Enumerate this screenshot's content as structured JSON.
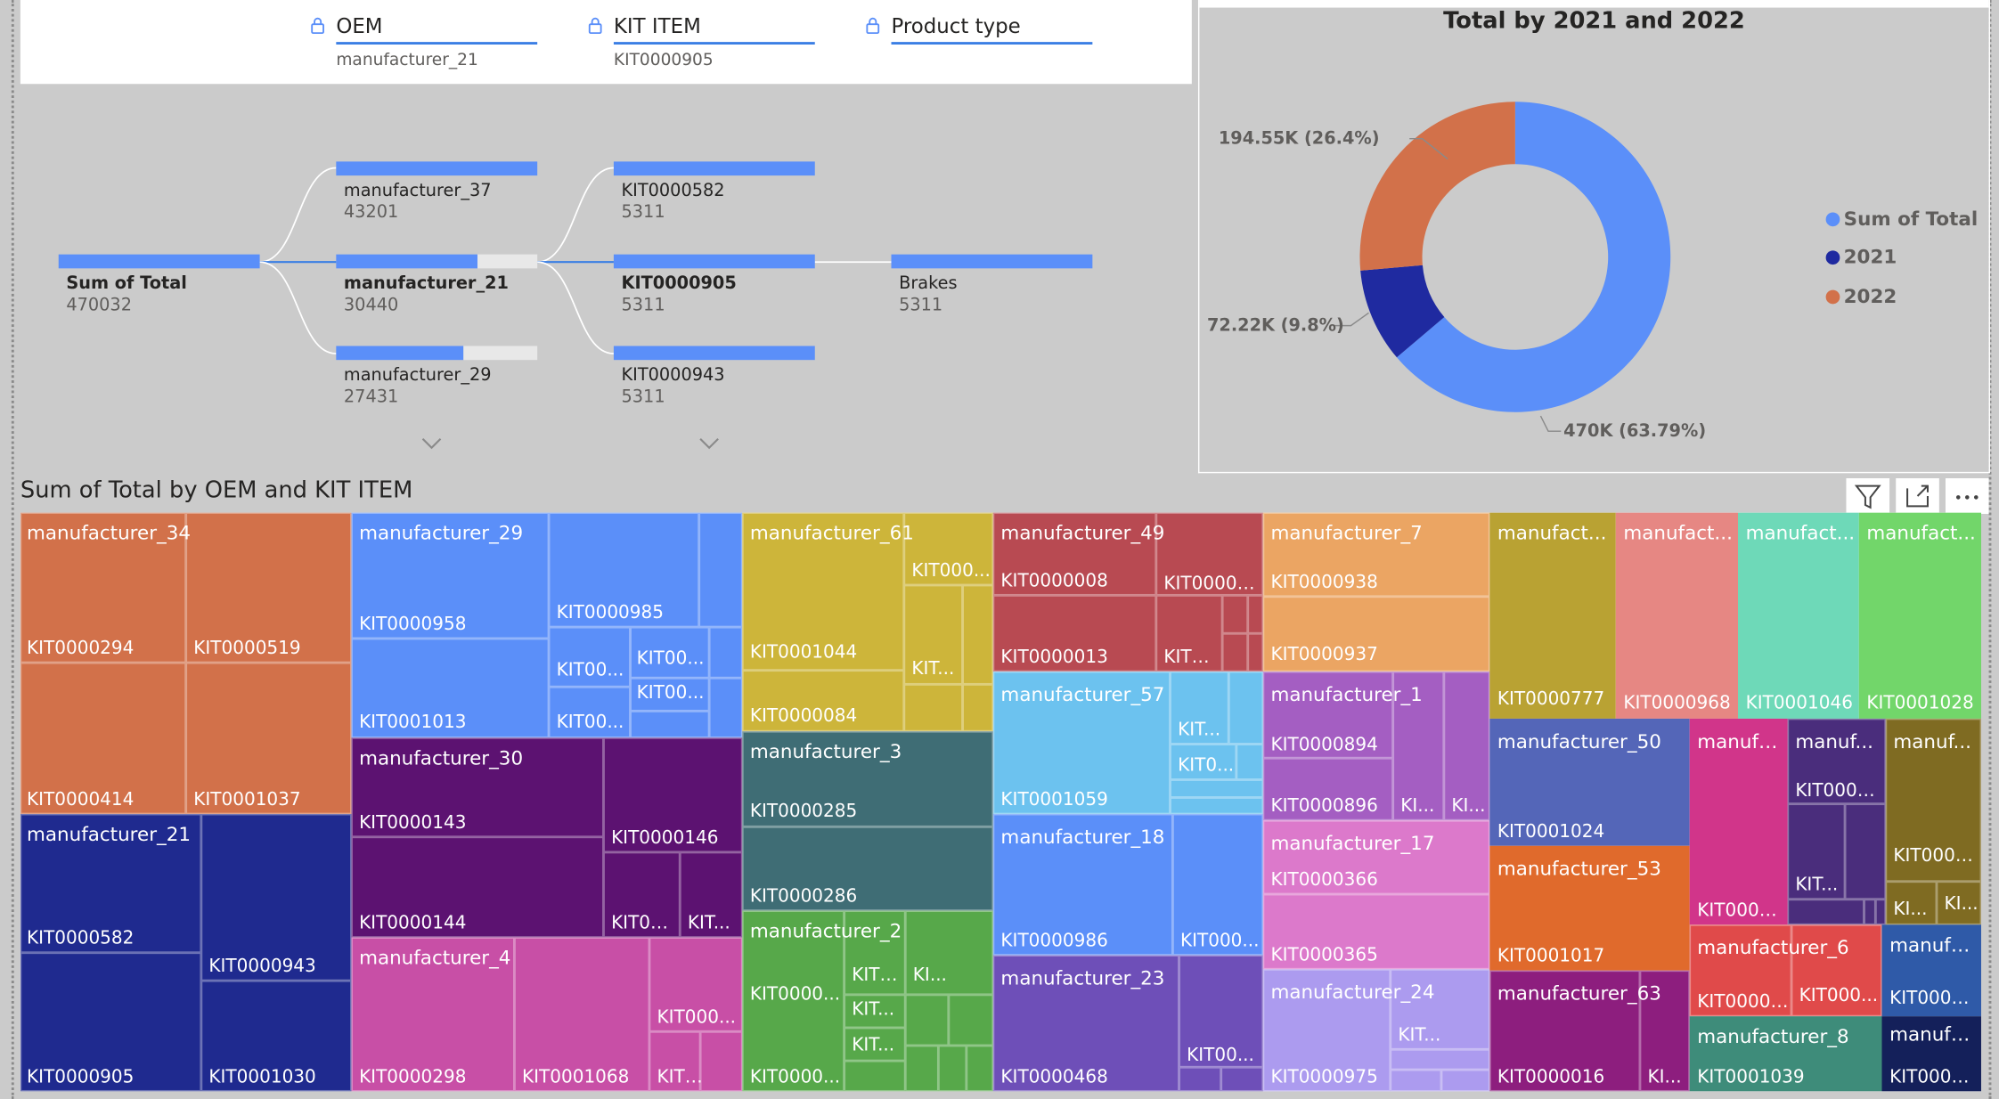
{
  "slicers": [
    {
      "title": "OEM",
      "value": "manufacturer_21"
    },
    {
      "title": "KIT ITEM",
      "value": "KIT0000905"
    },
    {
      "title": "Product type",
      "value": ""
    }
  ],
  "decomposition_tree": {
    "root": {
      "label": "Sum of Total",
      "value": "470032"
    },
    "level1": [
      {
        "label": "manufacturer_37",
        "value": "43201"
      },
      {
        "label": "manufacturer_21",
        "value": "30440"
      },
      {
        "label": "manufacturer_29",
        "value": "27431"
      }
    ],
    "level2": [
      {
        "label": "KIT0000582",
        "value": "5311"
      },
      {
        "label": "KIT0000905",
        "value": "5311"
      },
      {
        "label": "KIT0000943",
        "value": "5311"
      }
    ],
    "level3": {
      "label": "Brakes",
      "value": "5311"
    }
  },
  "donut": {
    "title": "Total by 2021 and 2022",
    "legend": [
      "Sum of Total",
      "2021",
      "2022"
    ],
    "colors": {
      "sum": "#5b8ff9",
      "y2021": "#1f2aa0",
      "y2022": "#d2714a"
    },
    "labels": {
      "sum": "470K (63.79%)",
      "y2021": "72.22K (9.8%)",
      "y2022": "194.55K (26.4%)"
    },
    "chart_data": {
      "type": "pie",
      "categories": [
        "Sum of Total",
        "2021",
        "2022"
      ],
      "values": [
        470000,
        72220,
        194550
      ],
      "percents": [
        63.79,
        9.8,
        26.4
      ]
    }
  },
  "treemap": {
    "title": "Sum of Total by OEM and KIT ITEM",
    "groups": {
      "m34": {
        "name": "manufacturer_34",
        "color": "#d2714a",
        "kits": [
          "KIT0000294",
          "KIT0000519",
          "KIT0000414",
          "KIT0001037"
        ]
      },
      "m21": {
        "name": "manufacturer_21",
        "color": "#1f2a8f",
        "kits": [
          "KIT0000582",
          "KIT0000943",
          "KIT0000905",
          "KIT0001030"
        ]
      },
      "m29": {
        "name": "manufacturer_29",
        "color": "#5b8ff9",
        "kits": [
          "KIT0000958",
          "KIT0000985",
          "KIT0001013",
          "KIT00...",
          "KIT00...",
          "KIT00...",
          "KIT00..."
        ]
      },
      "m30": {
        "name": "manufacturer_30",
        "color": "#5c1271",
        "kits": [
          "KIT0000143",
          "KIT0000146",
          "KIT0000144",
          "KIT00...",
          "KIT..."
        ]
      },
      "m4": {
        "name": "manufacturer_4",
        "color": "#c84fa6",
        "kits": [
          "KIT0000298",
          "KIT0001068",
          "KIT000...",
          "KIT0..."
        ]
      },
      "m61": {
        "name": "manufacturer_61",
        "color": "#cdb53a",
        "kits": [
          "KIT000...",
          "KIT0001044",
          "KIT...",
          "KIT0000084"
        ]
      },
      "m3": {
        "name": "manufacturer_3",
        "color": "#3f6d75",
        "kits": [
          "KIT0000285",
          "KIT0000286"
        ]
      },
      "m2": {
        "name": "manufacturer_2",
        "color": "#57a84a",
        "kits": [
          "KIT0000...",
          "KIT0...",
          "KI...",
          "KIT...",
          "KIT...",
          "KIT0000..."
        ]
      },
      "m49": {
        "name": "manufacturer_49",
        "color": "#b84a52",
        "kits": [
          "KIT0000008",
          "KIT00009...",
          "KIT0000013",
          "KIT0..."
        ]
      },
      "m57": {
        "name": "manufacturer_57",
        "color": "#6cc2ef",
        "kits": [
          "KIT...",
          "KIT0...",
          "KIT0001059"
        ]
      },
      "m18": {
        "name": "manufacturer_18",
        "color": "#5b8ff9",
        "kits": [
          "KIT0000986",
          "KIT000..."
        ]
      },
      "m23": {
        "name": "manufacturer_23",
        "color": "#6e4fb8",
        "kits": [
          "KIT0000468",
          "KIT00..."
        ]
      },
      "m7": {
        "name": "manufacturer_7",
        "color": "#eba563",
        "kits": [
          "KIT0000938",
          "KIT0000937"
        ]
      },
      "m1": {
        "name": "manufacturer_1",
        "color": "#a45ec2",
        "kits": [
          "KIT0000894",
          "KIT0000896",
          "KI...",
          "KI..."
        ]
      },
      "m17": {
        "name": "manufacturer_17",
        "color": "#dc79cb",
        "kits": [
          "KIT0000366",
          "KIT0000365"
        ]
      },
      "m24": {
        "name": "manufacturer_24",
        "color": "#ac9bef",
        "kits": [
          "KIT...",
          "KIT0000975"
        ]
      },
      "ma": {
        "name": "manufact...",
        "color": "#b9a233",
        "kits": [
          "KIT0000777"
        ]
      },
      "mb": {
        "name": "manufact...",
        "color": "#e68783",
        "kits": [
          "KIT0000968"
        ]
      },
      "mc": {
        "name": "manufact...",
        "color": "#6ed9b8",
        "kits": [
          "KIT0001046"
        ]
      },
      "md": {
        "name": "manufact...",
        "color": "#72d66a",
        "kits": [
          "KIT0001028"
        ]
      },
      "m50": {
        "name": "manufacturer_50",
        "color": "#5466b8",
        "kits": [
          "KIT0001024"
        ]
      },
      "m53": {
        "name": "manufacturer_53",
        "color": "#e06a2c",
        "kits": [
          "KIT0001017"
        ]
      },
      "m63": {
        "name": "manufacturer_63",
        "color": "#8d1e7e",
        "kits": [
          "KIT0000016",
          "KI..."
        ]
      },
      "me": {
        "name": "manufa...",
        "color": "#d1358a",
        "kits": [
          "KIT0000..."
        ]
      },
      "mf": {
        "name": "manuf...",
        "color": "#4a2d7c",
        "kits": [
          "KIT0001...",
          "KIT..."
        ]
      },
      "mg": {
        "name": "manuf...",
        "color": "#7f6b22",
        "kits": [
          "KIT0000...",
          "KI...",
          "KI..."
        ]
      },
      "m6": {
        "name": "manufacturer_6",
        "color": "#e04a4a",
        "kits": [
          "KIT00008...",
          "KIT000..."
        ]
      },
      "m8": {
        "name": "manufacturer_8",
        "color": "#3e8c7a",
        "kits": [
          "KIT0001039"
        ]
      },
      "mh": {
        "name": "manufa...",
        "color": "#2f5aa8",
        "kits": [
          "KIT0000..."
        ]
      },
      "mi": {
        "name": "manufa...",
        "color": "#14205a",
        "kits": [
          "KIT0000..."
        ]
      }
    }
  },
  "toolbar": {
    "filter_icon": "filter-icon",
    "focus_icon": "focus-mode-icon",
    "more_icon": "more-options-icon"
  }
}
